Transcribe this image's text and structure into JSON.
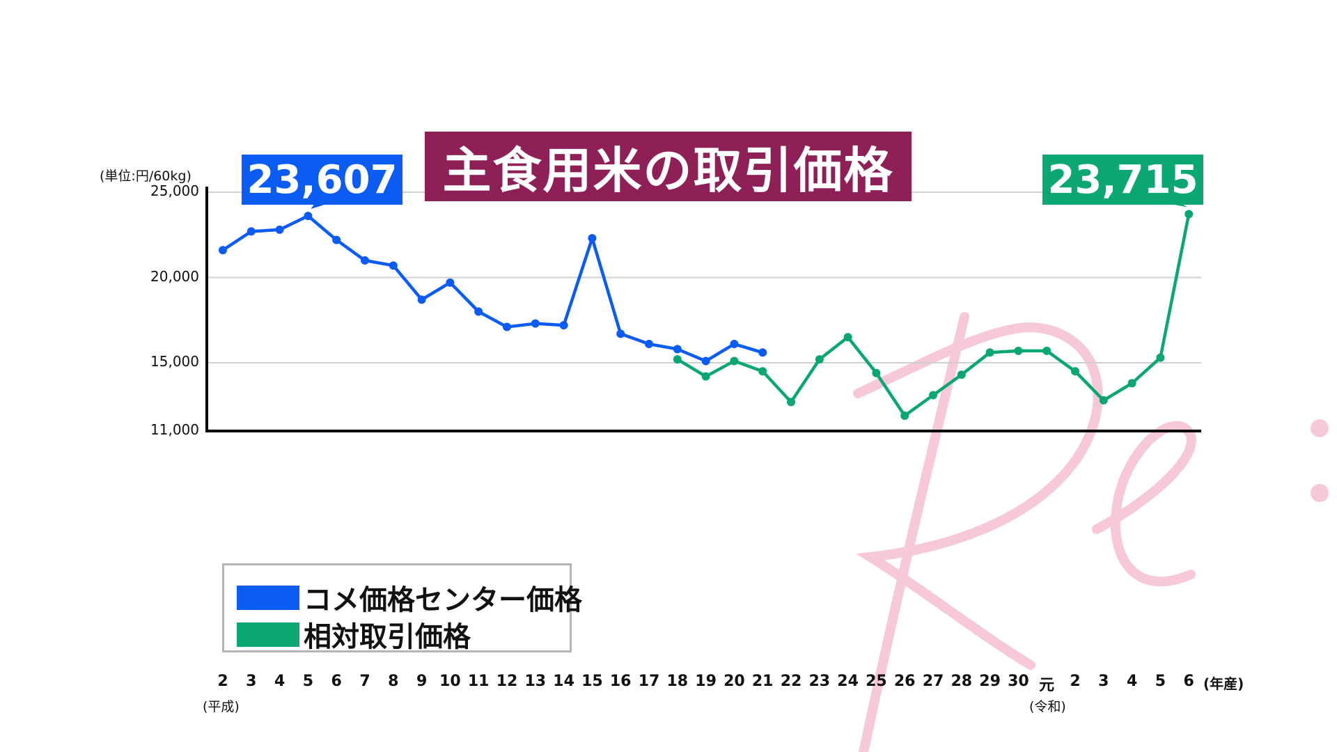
{
  "title": "主食用米の取引価格",
  "unit_label": "(単位:円/60kg)",
  "x_unit_label": "(年産)",
  "era_labels": {
    "heisei": "(平成)",
    "reiwa": "(令和)"
  },
  "callouts": {
    "blue": "23,607",
    "green": "23,715"
  },
  "legend": [
    {
      "label": "コメ価格センター価格",
      "color": "#0a5cf5"
    },
    {
      "label": "相対取引価格",
      "color": "#0aa775"
    }
  ],
  "colors": {
    "blue": "#0a5cf5",
    "green": "#0aa775",
    "title_bg": "#8f1f57",
    "watermark": "#f7c9d8"
  },
  "chart_data": {
    "type": "line",
    "title": "主食用米の取引価格",
    "ylabel": "(単位:円/60kg)",
    "xlabel": "(年産)",
    "ylim": [
      11000,
      25000
    ],
    "yticks": [
      "25,000",
      "20,000",
      "15,000",
      "11,000"
    ],
    "ytick_values": [
      25000,
      20000,
      15000,
      11000
    ],
    "categories": [
      "2",
      "3",
      "4",
      "5",
      "6",
      "7",
      "8",
      "9",
      "10",
      "11",
      "12",
      "13",
      "14",
      "15",
      "16",
      "17",
      "18",
      "19",
      "20",
      "21",
      "22",
      "23",
      "24",
      "25",
      "26",
      "27",
      "28",
      "29",
      "30",
      "元",
      "2",
      "3",
      "4",
      "5",
      "6"
    ],
    "grid": true,
    "legend_position": "bottom-left",
    "series": [
      {
        "name": "コメ価格センター価格",
        "color": "#0a5cf5",
        "values": [
          21600,
          22700,
          22800,
          23607,
          22200,
          21000,
          20700,
          18700,
          19700,
          18000,
          17100,
          17300,
          17200,
          22300,
          16700,
          16100,
          15800,
          15100,
          16100,
          15600,
          null,
          null,
          null,
          null,
          null,
          null,
          null,
          null,
          null,
          null,
          null,
          null,
          null,
          null,
          null
        ]
      },
      {
        "name": "相対取引価格",
        "color": "#0aa775",
        "values": [
          null,
          null,
          null,
          null,
          null,
          null,
          null,
          null,
          null,
          null,
          null,
          null,
          null,
          null,
          null,
          null,
          15200,
          14200,
          15100,
          14500,
          12700,
          15200,
          16500,
          14400,
          11900,
          13100,
          14300,
          15600,
          15700,
          15700,
          14500,
          12800,
          13800,
          15300,
          23715
        ]
      }
    ]
  }
}
